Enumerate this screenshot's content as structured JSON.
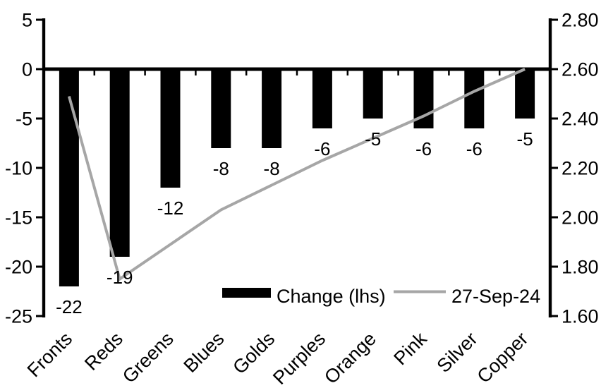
{
  "chart_data": {
    "type": "combo",
    "title": "",
    "categories": [
      "Fronts",
      "Reds",
      "Greens",
      "Blues",
      "Golds",
      "Purples",
      "Orange",
      "Pink",
      "Silver",
      "Copper"
    ],
    "series": [
      {
        "name": "Change (lhs)",
        "type": "bar",
        "axis": "left",
        "color": "#000000",
        "values": [
          -22,
          -19,
          -12,
          -8,
          -8,
          -6,
          -5,
          -6,
          -6,
          -5
        ],
        "data_labels": [
          "-22",
          "-19",
          "-12",
          "-8",
          "-8",
          "-6",
          "-5",
          "-6",
          "-6",
          "-5"
        ]
      },
      {
        "name": "27-Sep-24",
        "type": "line",
        "axis": "right",
        "color": "#a6a6a6",
        "values": [
          2.49,
          1.75,
          1.89,
          2.03,
          2.13,
          2.23,
          2.32,
          2.41,
          2.51,
          2.6
        ]
      }
    ],
    "left_axis": {
      "min": -25,
      "max": 5,
      "step": 5,
      "tick_labels": [
        "5",
        "0",
        "-5",
        "-10",
        "-15",
        "-20",
        "-25"
      ]
    },
    "right_axis": {
      "min": 1.6,
      "max": 2.8,
      "step": 0.2,
      "tick_labels": [
        "2.80",
        "2.60",
        "2.40",
        "2.20",
        "2.00",
        "1.80",
        "1.60"
      ]
    },
    "legend": {
      "position": "bottom-inside",
      "entries": [
        {
          "label": "Change (lhs)",
          "swatch": "bar",
          "color": "#000000"
        },
        {
          "label": "27-Sep-24",
          "swatch": "line",
          "color": "#a6a6a6"
        }
      ]
    },
    "grid": false,
    "axis_color": "#000000",
    "background": "#ffffff"
  }
}
